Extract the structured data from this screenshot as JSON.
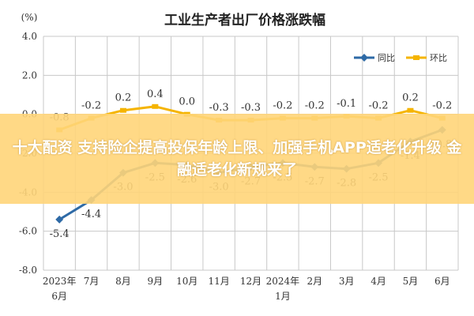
{
  "overlay": {
    "banner": "十大配资 支持险企提高投保年龄上限、加强手机APP适老化升级 金融适老化新规来了"
  },
  "chart_data": {
    "type": "line",
    "title": "工业生产者出厂价格涨跌幅",
    "unit_label": "(%)",
    "ylim": [
      -8.0,
      4.0
    ],
    "yticks": [
      "4.0",
      "2.0",
      "0.0",
      "-2.0",
      "-4.0",
      "-6.0",
      "-8.0"
    ],
    "ytick_values": [
      4,
      2,
      0,
      -2,
      -4,
      -6,
      -8
    ],
    "categories": [
      "2023年6月",
      "7月",
      "8月",
      "9月",
      "10月",
      "11月",
      "12月",
      "2024年1月",
      "2月",
      "3月",
      "4月",
      "5月",
      "6月"
    ],
    "xtick_lines": [
      [
        "2023年",
        "6月"
      ],
      [
        "7月"
      ],
      [
        "8月"
      ],
      [
        "9月"
      ],
      [
        "10月"
      ],
      [
        "11月"
      ],
      [
        "12月"
      ],
      [
        "2024年",
        "1月"
      ],
      [
        "2月"
      ],
      [
        "3月"
      ],
      [
        "4月"
      ],
      [
        "5月"
      ],
      [
        "6月"
      ]
    ],
    "legend_position": "top-right",
    "grid": true,
    "series": [
      {
        "name": "同比",
        "color": "#2e6aa6",
        "values": [
          -5.4,
          -4.4,
          -3.0,
          -2.5,
          -2.6,
          -3.0,
          -2.7,
          -2.5,
          -2.7,
          -2.8,
          -2.5,
          -1.4,
          -0.8
        ],
        "labels": [
          "-5.4",
          "-4.4",
          "-3.0",
          "-2.5",
          "-2.6",
          "-3.0",
          "-2.7",
          "-2.5",
          "-2.7",
          "-2.8",
          "-2.5",
          "-1.4",
          "-0.8"
        ]
      },
      {
        "name": "环比",
        "color": "#f5b400",
        "values": [
          -0.8,
          -0.2,
          0.2,
          0.4,
          0.0,
          -0.3,
          -0.3,
          -0.2,
          -0.2,
          -0.1,
          -0.2,
          0.2,
          -0.2
        ],
        "labels": [
          "-0.8",
          "-0.2",
          "0.2",
          "0.4",
          "0.0",
          "-0.3",
          "-0.3",
          "-0.2",
          "-0.2",
          "-0.1",
          "-0.2",
          "0.2",
          "-0.2"
        ]
      }
    ]
  }
}
